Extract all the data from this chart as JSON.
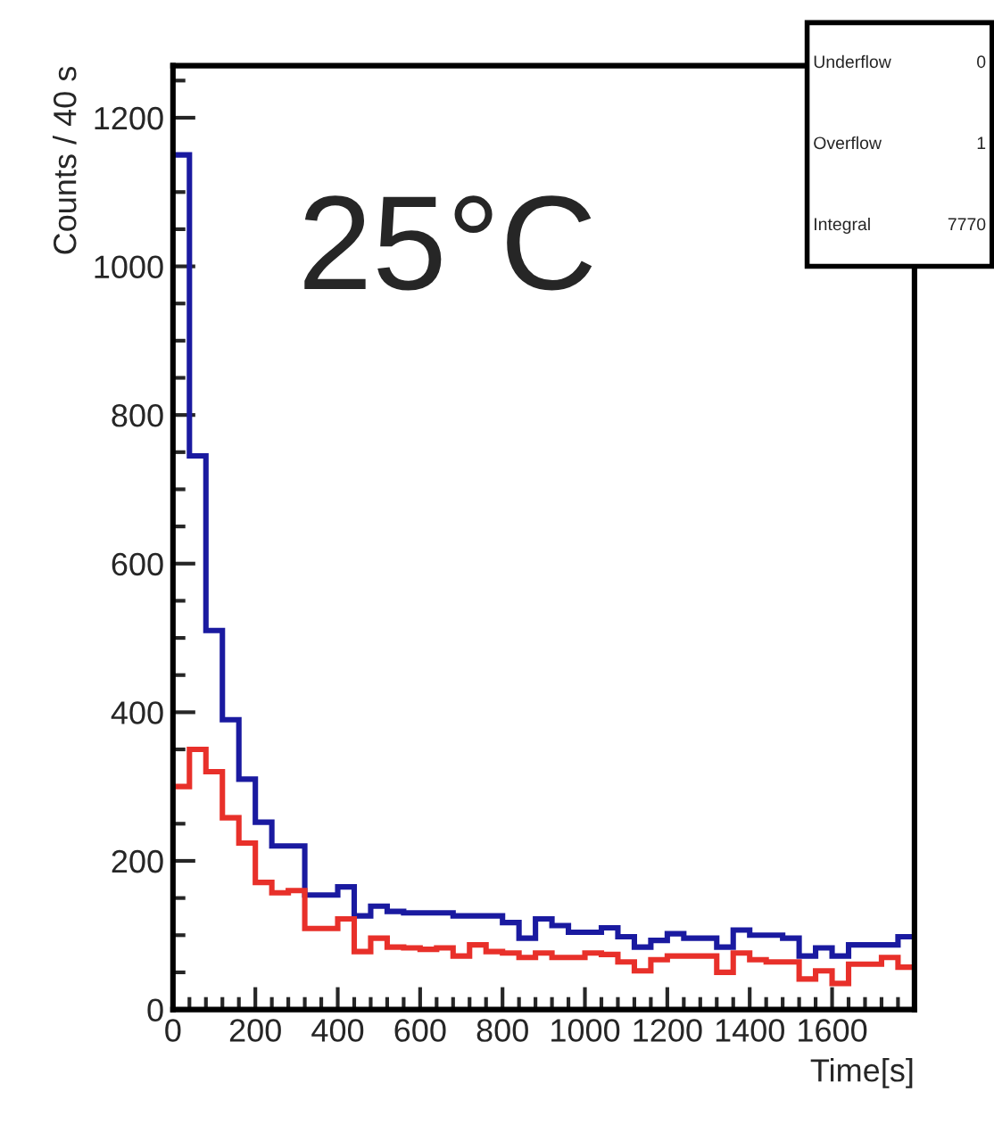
{
  "chart_data": {
    "type": "histogram",
    "xlabel": "Time[s]",
    "ylabel": "Counts / 40 s",
    "bins": [
      0,
      40,
      80,
      120,
      160,
      200,
      240,
      280,
      320,
      360,
      400,
      440,
      480,
      520,
      560,
      600,
      640,
      680,
      720,
      760,
      800,
      840,
      880,
      920,
      960,
      1000,
      1040,
      1080,
      1120,
      1160,
      1200,
      1240,
      1280,
      1320,
      1360,
      1400,
      1440,
      1480,
      1520,
      1560,
      1600,
      1640,
      1680,
      1720,
      1760,
      1800
    ],
    "series": [
      {
        "color": "#1a1aa0",
        "values": [
          1150,
          745,
          510,
          390,
          310,
          252,
          220,
          220,
          154,
          154,
          165,
          126,
          139,
          132,
          130,
          130,
          130,
          126,
          126,
          126,
          117,
          96,
          122,
          113,
          104,
          104,
          110,
          98,
          84,
          93,
          102,
          96,
          96,
          84,
          107,
          100,
          100,
          96,
          72,
          83,
          72,
          87,
          87,
          87,
          98
        ]
      },
      {
        "color": "#e8302a",
        "values": [
          300,
          350,
          320,
          258,
          224,
          171,
          157,
          160,
          109,
          109,
          122,
          78,
          96,
          84,
          83,
          81,
          83,
          72,
          87,
          78,
          76,
          70,
          76,
          70,
          70,
          76,
          74,
          64,
          52,
          67,
          72,
          72,
          72,
          50,
          76,
          67,
          64,
          64,
          41,
          52,
          35,
          61,
          61,
          70,
          57
        ]
      }
    ],
    "xlim": [
      0,
      1800
    ],
    "xticks": [
      0,
      200,
      400,
      600,
      800,
      1000,
      1200,
      1400,
      1600
    ],
    "ylim": [
      0,
      1270
    ],
    "yticks": [
      0,
      200,
      400,
      600,
      800,
      1000,
      1200
    ],
    "grid": false,
    "annotations": [
      "25°C",
      "Underflow",
      "0",
      "Overflow",
      "1",
      "Integral",
      "7770"
    ]
  }
}
